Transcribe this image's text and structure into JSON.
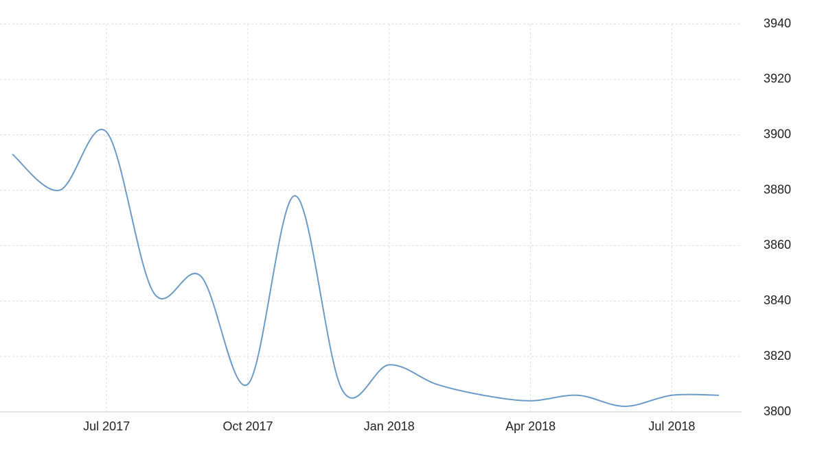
{
  "chart_data": {
    "type": "line",
    "categories": [
      null,
      null,
      "Jul 2017",
      null,
      null,
      "Oct 2017",
      null,
      null,
      "Jan 2018",
      null,
      null,
      "Apr 2018",
      null,
      null,
      "Jul 2018",
      null
    ],
    "values": [
      3893,
      3880,
      3901,
      3843,
      3849,
      3810,
      3878,
      3808,
      3817,
      3810,
      3806,
      3804,
      3806,
      3802,
      3806,
      3806
    ],
    "color": "#6a9ac9",
    "ylim": [
      3800,
      3940
    ],
    "yticks": [
      3800,
      3820,
      3840,
      3860,
      3880,
      3900,
      3920,
      3940
    ],
    "grid": true
  }
}
